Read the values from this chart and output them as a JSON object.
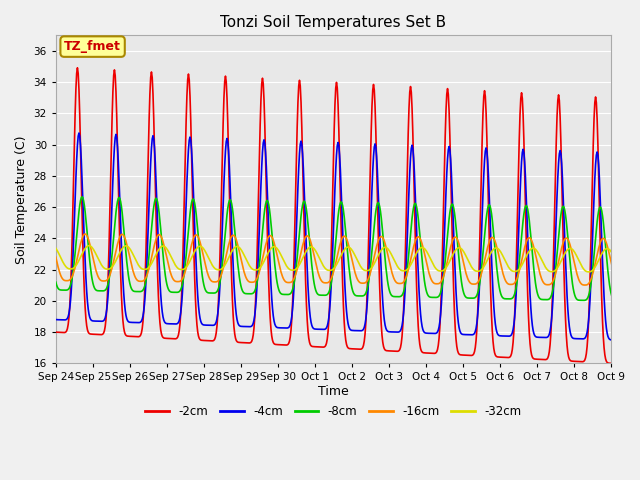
{
  "title": "Tonzi Soil Temperatures Set B",
  "xlabel": "Time",
  "ylabel": "Soil Temperature (C)",
  "ylim": [
    16,
    37
  ],
  "yticks": [
    16,
    18,
    20,
    22,
    24,
    26,
    28,
    30,
    32,
    34,
    36
  ],
  "annotation": "TZ_fmet",
  "annotation_color": "#cc0000",
  "annotation_bg": "#ffff99",
  "annotation_border": "#aa8800",
  "series": {
    "-2cm": {
      "color": "#ee0000",
      "lw": 1.2
    },
    "-4cm": {
      "color": "#0000ee",
      "lw": 1.2
    },
    "-8cm": {
      "color": "#00cc00",
      "lw": 1.2
    },
    "-16cm": {
      "color": "#ff8800",
      "lw": 1.2
    },
    "-32cm": {
      "color": "#dddd00",
      "lw": 1.2
    }
  },
  "x_tick_labels": [
    "Sep 24",
    "Sep 25",
    "Sep 26",
    "Sep 27",
    "Sep 28",
    "Sep 29",
    "Sep 30",
    "Oct 1",
    "Oct 2",
    "Oct 3",
    "Oct 4",
    "Oct 5",
    "Oct 6",
    "Oct 7",
    "Oct 8",
    "Oct 9"
  ],
  "fig_bg": "#f0f0f0",
  "plot_bg": "#e8e8e8",
  "grid_color": "#ffffff"
}
